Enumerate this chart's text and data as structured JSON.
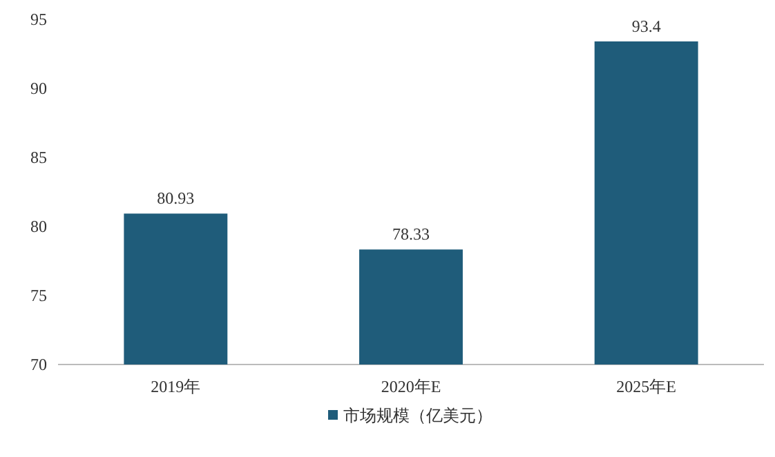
{
  "chart_data": {
    "type": "bar",
    "categories": [
      "2019年",
      "2020年E",
      "2025年E"
    ],
    "series": [
      {
        "name": "市场规模（亿美元）",
        "color": "#1f5c7a",
        "values": [
          80.93,
          78.33,
          93.4
        ]
      }
    ],
    "ylim": [
      70,
      95
    ],
    "yticks": [
      70,
      75,
      80,
      85,
      90,
      95
    ],
    "data_labels": true,
    "legend": "bottom"
  }
}
